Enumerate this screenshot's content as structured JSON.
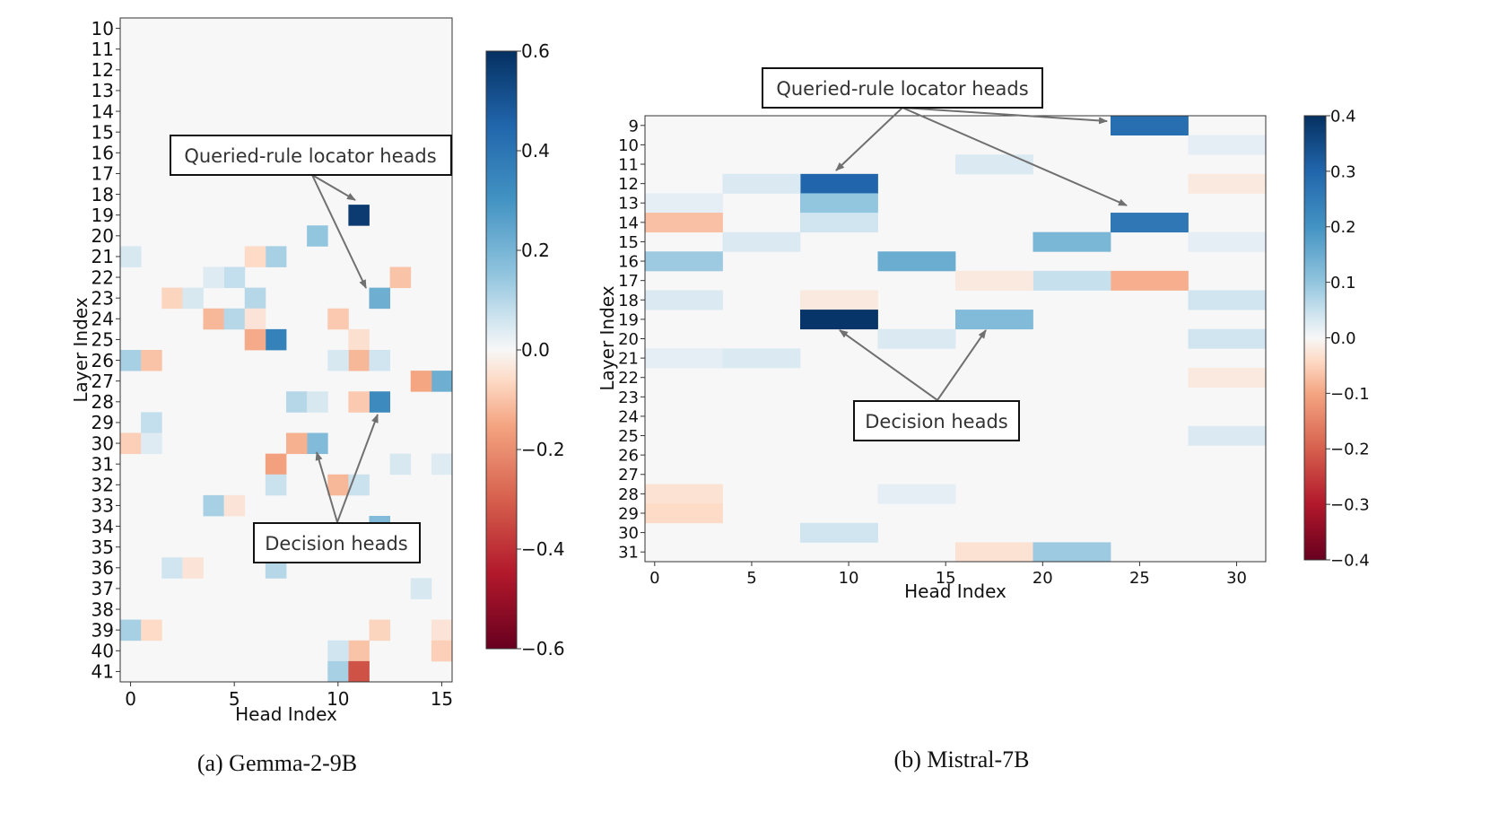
{
  "chart_data": [
    {
      "type": "heatmap",
      "model": "Gemma-2-9B",
      "caption": "(a) Gemma-2-9B",
      "xlabel": "Head Index",
      "ylabel": "Layer Index",
      "x_ticks": [
        0,
        5,
        10,
        15
      ],
      "num_heads": 16,
      "layers": [
        10,
        11,
        12,
        13,
        14,
        15,
        16,
        17,
        18,
        19,
        20,
        21,
        22,
        23,
        24,
        25,
        26,
        27,
        28,
        29,
        30,
        31,
        32,
        33,
        34,
        35,
        36,
        37,
        38,
        39,
        40,
        41
      ],
      "vlim": [
        -0.6,
        0.6
      ],
      "colorbar_ticks": [
        "0.6",
        "0.4",
        "0.2",
        "0.0",
        "−0.2",
        "−0.4",
        "−0.6"
      ],
      "colorbar_values": [
        0.6,
        0.4,
        0.2,
        0.0,
        -0.2,
        -0.4,
        -0.6
      ],
      "background_value": 0.0,
      "cells": [
        {
          "layer": 19,
          "head": 11,
          "value": 0.57
        },
        {
          "layer": 20,
          "head": 9,
          "value": 0.15
        },
        {
          "layer": 21,
          "head": 7,
          "value": 0.12
        },
        {
          "layer": 21,
          "head": 6,
          "value": -0.06
        },
        {
          "layer": 21,
          "head": 0,
          "value": 0.05
        },
        {
          "layer": 22,
          "head": 5,
          "value": 0.08
        },
        {
          "layer": 22,
          "head": 13,
          "value": -0.1
        },
        {
          "layer": 22,
          "head": 4,
          "value": 0.04
        },
        {
          "layer": 23,
          "head": 12,
          "value": 0.22
        },
        {
          "layer": 23,
          "head": 6,
          "value": 0.1
        },
        {
          "layer": 23,
          "head": 2,
          "value": -0.07
        },
        {
          "layer": 23,
          "head": 3,
          "value": 0.05
        },
        {
          "layer": 24,
          "head": 4,
          "value": -0.12
        },
        {
          "layer": 24,
          "head": 5,
          "value": 0.1
        },
        {
          "layer": 24,
          "head": 10,
          "value": -0.09
        },
        {
          "layer": 24,
          "head": 6,
          "value": -0.04
        },
        {
          "layer": 25,
          "head": 7,
          "value": 0.36
        },
        {
          "layer": 25,
          "head": 6,
          "value": -0.14
        },
        {
          "layer": 25,
          "head": 11,
          "value": -0.05
        },
        {
          "layer": 26,
          "head": 0,
          "value": 0.12
        },
        {
          "layer": 26,
          "head": 1,
          "value": -0.1
        },
        {
          "layer": 26,
          "head": 11,
          "value": -0.12
        },
        {
          "layer": 26,
          "head": 12,
          "value": 0.06
        },
        {
          "layer": 26,
          "head": 10,
          "value": 0.05
        },
        {
          "layer": 27,
          "head": 15,
          "value": 0.22
        },
        {
          "layer": 27,
          "head": 14,
          "value": -0.15
        },
        {
          "layer": 28,
          "head": 12,
          "value": 0.33
        },
        {
          "layer": 28,
          "head": 8,
          "value": 0.1
        },
        {
          "layer": 28,
          "head": 11,
          "value": -0.09
        },
        {
          "layer": 28,
          "head": 9,
          "value": 0.05
        },
        {
          "layer": 29,
          "head": 1,
          "value": 0.08
        },
        {
          "layer": 30,
          "head": 9,
          "value": 0.18
        },
        {
          "layer": 30,
          "head": 8,
          "value": -0.13
        },
        {
          "layer": 30,
          "head": 0,
          "value": -0.08
        },
        {
          "layer": 30,
          "head": 1,
          "value": 0.04
        },
        {
          "layer": 31,
          "head": 7,
          "value": -0.16
        },
        {
          "layer": 31,
          "head": 13,
          "value": 0.05
        },
        {
          "layer": 31,
          "head": 15,
          "value": 0.04
        },
        {
          "layer": 32,
          "head": 10,
          "value": -0.12
        },
        {
          "layer": 32,
          "head": 11,
          "value": 0.07
        },
        {
          "layer": 32,
          "head": 7,
          "value": 0.07
        },
        {
          "layer": 33,
          "head": 4,
          "value": 0.12
        },
        {
          "layer": 33,
          "head": 5,
          "value": -0.04
        },
        {
          "layer": 34,
          "head": 12,
          "value": 0.18
        },
        {
          "layer": 36,
          "head": 7,
          "value": 0.1
        },
        {
          "layer": 36,
          "head": 2,
          "value": 0.06
        },
        {
          "layer": 36,
          "head": 3,
          "value": -0.04
        },
        {
          "layer": 37,
          "head": 14,
          "value": 0.05
        },
        {
          "layer": 39,
          "head": 0,
          "value": 0.12
        },
        {
          "layer": 39,
          "head": 1,
          "value": -0.06
        },
        {
          "layer": 39,
          "head": 12,
          "value": -0.07
        },
        {
          "layer": 39,
          "head": 15,
          "value": -0.04
        },
        {
          "layer": 40,
          "head": 11,
          "value": -0.1
        },
        {
          "layer": 40,
          "head": 10,
          "value": 0.06
        },
        {
          "layer": 40,
          "head": 15,
          "value": -0.08
        },
        {
          "layer": 41,
          "head": 10,
          "value": 0.12
        },
        {
          "layer": 41,
          "head": 11,
          "value": -0.33
        }
      ],
      "annotations": [
        {
          "label": "Queried-rule locator heads",
          "targets": [
            {
              "layer": 19,
              "head": 11
            },
            {
              "layer": 23,
              "head": 12
            }
          ]
        },
        {
          "label": "Decision heads",
          "targets": [
            {
              "layer": 30,
              "head": 9
            },
            {
              "layer": 28,
              "head": 12
            }
          ]
        }
      ]
    },
    {
      "type": "heatmap",
      "model": "Mistral-7B",
      "caption": "(b) Mistral-7B",
      "xlabel": "Head Index",
      "ylabel": "Layer Index",
      "x_ticks": [
        0,
        5,
        10,
        15,
        20,
        25,
        30
      ],
      "num_heads": 32,
      "head_group": 4,
      "layers": [
        9,
        10,
        11,
        12,
        13,
        14,
        15,
        16,
        17,
        18,
        19,
        20,
        21,
        22,
        23,
        24,
        25,
        26,
        27,
        28,
        29,
        30,
        31
      ],
      "vlim": [
        -0.4,
        0.4
      ],
      "colorbar_ticks": [
        "0.4",
        "0.3",
        "0.2",
        "0.1",
        "0.0",
        "−0.1",
        "−0.2",
        "−0.3",
        "−0.4"
      ],
      "colorbar_values": [
        0.4,
        0.3,
        0.2,
        0.1,
        0.0,
        -0.1,
        -0.2,
        -0.3,
        -0.4
      ],
      "background_value": 0.0,
      "cells": [
        {
          "layer": 9,
          "group": 6,
          "value": 0.28
        },
        {
          "layer": 10,
          "group": 7,
          "value": 0.02
        },
        {
          "layer": 11,
          "group": 4,
          "value": 0.03
        },
        {
          "layer": 12,
          "group": 2,
          "value": 0.3
        },
        {
          "layer": 12,
          "group": 1,
          "value": 0.03
        },
        {
          "layer": 12,
          "group": 7,
          "value": -0.02
        },
        {
          "layer": 13,
          "group": 2,
          "value": 0.1
        },
        {
          "layer": 13,
          "group": 0,
          "value": 0.02
        },
        {
          "layer": 14,
          "group": 6,
          "value": 0.26
        },
        {
          "layer": 14,
          "group": 0,
          "value": -0.07
        },
        {
          "layer": 14,
          "group": 2,
          "value": 0.04
        },
        {
          "layer": 15,
          "group": 5,
          "value": 0.13
        },
        {
          "layer": 15,
          "group": 1,
          "value": 0.03
        },
        {
          "layer": 15,
          "group": 7,
          "value": 0.02
        },
        {
          "layer": 16,
          "group": 0,
          "value": 0.09
        },
        {
          "layer": 16,
          "group": 3,
          "value": 0.15
        },
        {
          "layer": 17,
          "group": 6,
          "value": -0.09
        },
        {
          "layer": 17,
          "group": 5,
          "value": 0.05
        },
        {
          "layer": 17,
          "group": 4,
          "value": -0.02
        },
        {
          "layer": 18,
          "group": 0,
          "value": 0.03
        },
        {
          "layer": 18,
          "group": 2,
          "value": -0.02
        },
        {
          "layer": 18,
          "group": 7,
          "value": 0.04
        },
        {
          "layer": 19,
          "group": 2,
          "value": 0.39
        },
        {
          "layer": 19,
          "group": 4,
          "value": 0.12
        },
        {
          "layer": 20,
          "group": 3,
          "value": 0.03
        },
        {
          "layer": 20,
          "group": 7,
          "value": 0.04
        },
        {
          "layer": 21,
          "group": 0,
          "value": 0.02
        },
        {
          "layer": 21,
          "group": 1,
          "value": 0.03
        },
        {
          "layer": 22,
          "group": 7,
          "value": -0.02
        },
        {
          "layer": 25,
          "group": 7,
          "value": 0.03
        },
        {
          "layer": 28,
          "group": 0,
          "value": -0.03
        },
        {
          "layer": 28,
          "group": 3,
          "value": 0.02
        },
        {
          "layer": 29,
          "group": 0,
          "value": -0.04
        },
        {
          "layer": 30,
          "group": 2,
          "value": 0.04
        },
        {
          "layer": 31,
          "group": 4,
          "value": -0.03
        },
        {
          "layer": 31,
          "group": 5,
          "value": 0.09
        }
      ],
      "annotations": [
        {
          "label": "Queried-rule locator heads",
          "targets": [
            {
              "layer": 12,
              "group": 2
            },
            {
              "layer": 9,
              "group": 6
            },
            {
              "layer": 14,
              "group": 6
            }
          ]
        },
        {
          "label": "Decision heads",
          "targets": [
            {
              "layer": 19,
              "group": 2
            },
            {
              "layer": 19,
              "group": 4
            }
          ]
        }
      ]
    }
  ]
}
